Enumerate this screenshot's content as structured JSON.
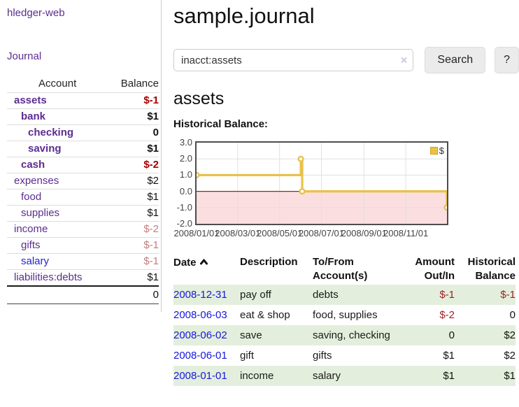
{
  "app": {
    "brand": "hledger-web",
    "nav": {
      "journal": "Journal"
    }
  },
  "sidebar": {
    "header": {
      "account": "Account",
      "balance": "Balance"
    },
    "rows": [
      {
        "name": "assets",
        "depth": 0,
        "bold": true,
        "balance": "$-1",
        "balance_class": "neg-strong"
      },
      {
        "name": "bank",
        "depth": 1,
        "bold": true,
        "balance": "$1",
        "balance_class": "strong"
      },
      {
        "name": "checking",
        "depth": 2,
        "bold": true,
        "balance": "0",
        "balance_class": "strong"
      },
      {
        "name": "saving",
        "depth": 2,
        "bold": true,
        "balance": "$1",
        "balance_class": "strong"
      },
      {
        "name": "cash",
        "depth": 1,
        "bold": true,
        "balance": "$-2",
        "balance_class": "neg-strong"
      },
      {
        "name": "expenses",
        "depth": 0,
        "bold": false,
        "balance": "$2",
        "balance_class": ""
      },
      {
        "name": "food",
        "depth": 1,
        "bold": false,
        "balance": "$1",
        "balance_class": ""
      },
      {
        "name": "supplies",
        "depth": 1,
        "bold": false,
        "balance": "$1",
        "balance_class": ""
      },
      {
        "name": "income",
        "depth": 0,
        "bold": false,
        "balance": "$-2",
        "balance_class": "neg-light"
      },
      {
        "name": "gifts",
        "depth": 1,
        "bold": false,
        "balance": "$-1",
        "balance_class": "neg-light"
      },
      {
        "name": "salary",
        "depth": 1,
        "bold": false,
        "balance": "$-1",
        "balance_class": "neg-light",
        "name_class": "blue"
      },
      {
        "name": "liabilities:debts",
        "depth": 0,
        "bold": false,
        "balance": "$1",
        "balance_class": ""
      }
    ],
    "total": "0"
  },
  "header": {
    "title": "sample.journal"
  },
  "search": {
    "value": "inacct:assets",
    "clear_icon": "×",
    "search_button": "Search",
    "help_button": "?"
  },
  "account_page": {
    "title": "assets",
    "chart_label": "Historical Balance:"
  },
  "chart_data": {
    "type": "line",
    "step": true,
    "title": "Historical Balance:",
    "series": [
      {
        "name": "$",
        "color": "#e9c24a",
        "points": [
          {
            "x": "2008/01/01",
            "y": 1.0
          },
          {
            "x": "2008/06/01",
            "y": 2.0
          },
          {
            "x": "2008/06/03",
            "y": 0.0
          },
          {
            "x": "2008/12/31",
            "y": -1.0
          }
        ]
      }
    ],
    "ylim": [
      -2.0,
      3.0
    ],
    "yticks": [
      "3.0",
      "2.0",
      "1.0",
      "0.0",
      "-1.0",
      "-2.0"
    ],
    "xticks": [
      "2008/01/01",
      "2008/03/01",
      "2008/05/01",
      "2008/07/01",
      "2008/09/01",
      "2008/11/01"
    ],
    "x_range": [
      "2008/01/01",
      "2008/12/31"
    ],
    "grid": true,
    "legend": {
      "label": "$",
      "position": "top-right"
    },
    "negative_fill": "#fbdee0",
    "zero_line_color": "#a02020",
    "gridline_color": "#e0e0e0"
  },
  "register": {
    "columns": [
      {
        "line1": "Date",
        "line2": "",
        "align": "left",
        "sort_icon": "sort-ascending-icon"
      },
      {
        "line1": "Description",
        "line2": "",
        "align": "left"
      },
      {
        "line1": "To/From",
        "line2": "Account(s)",
        "align": "left"
      },
      {
        "line1": "Amount",
        "line2": "Out/In",
        "align": "right"
      },
      {
        "line1": "Historical",
        "line2": "Balance",
        "align": "right"
      }
    ],
    "rows": [
      {
        "date": "2008-12-31",
        "description": "pay off",
        "accounts": "debts",
        "amount": "$-1",
        "amount_class": "neg",
        "balance": "$-1",
        "balance_class": "neg"
      },
      {
        "date": "2008-06-03",
        "description": "eat & shop",
        "accounts": "food, supplies",
        "amount": "$-2",
        "amount_class": "neg",
        "balance": "0",
        "balance_class": ""
      },
      {
        "date": "2008-06-02",
        "description": "save",
        "accounts": "saving, checking",
        "amount": "0",
        "amount_class": "",
        "balance": "$2",
        "balance_class": ""
      },
      {
        "date": "2008-06-01",
        "description": "gift",
        "accounts": "gifts",
        "amount": "$1",
        "amount_class": "",
        "balance": "$2",
        "balance_class": ""
      },
      {
        "date": "2008-01-01",
        "description": "income",
        "accounts": "salary",
        "amount": "$1",
        "amount_class": "",
        "balance": "$1",
        "balance_class": ""
      }
    ]
  },
  "colors": {
    "accent_purple": "#5c2d91",
    "link_blue": "#1717dd",
    "negative_strong": "#a40000",
    "negative_light": "#c17d7d",
    "row_stripe_green": "#e3efdc",
    "series_yellow": "#edc240"
  }
}
